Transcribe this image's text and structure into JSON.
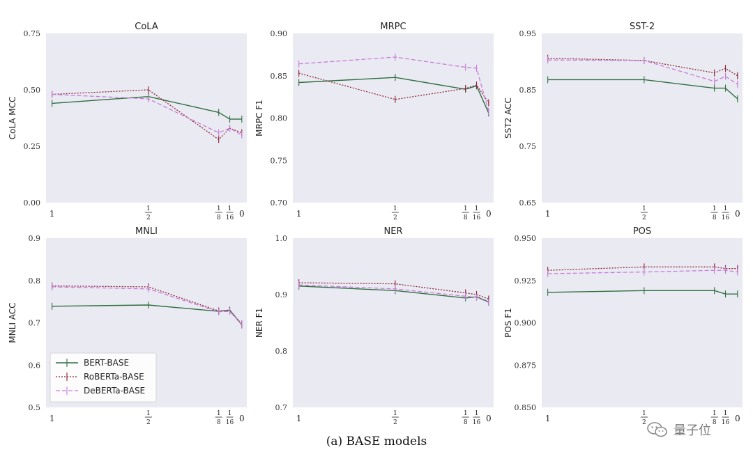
{
  "caption": "(a) BASE models",
  "watermark_text": "量子位",
  "colors": {
    "panel_bg": "#eaeaf2",
    "bert": "#2e6e3e",
    "roberta": "#8b2233",
    "deberta": "#c77bd9"
  },
  "x_tick_labels": [
    "1",
    "1/2",
    "1/8",
    "1/16",
    "0"
  ],
  "legend": {
    "placement": "lower-left",
    "panel": "MNLI",
    "entries": [
      "BERT-BASE",
      "RoBERTa-BASE",
      "DeBERTa-BASE"
    ]
  },
  "chart_data": [
    {
      "type": "line",
      "title": "CoLA",
      "ylabel": "CoLA MCC",
      "ylim": [
        0.0,
        0.75
      ],
      "yticks": [
        "0.00",
        "0.25",
        "0.50",
        "0.75"
      ],
      "x": [
        1,
        0.5,
        0.125,
        0.0625,
        0
      ],
      "series": [
        {
          "name": "BERT-BASE",
          "values": [
            0.44,
            0.47,
            0.4,
            0.37,
            0.37
          ]
        },
        {
          "name": "RoBERTa-BASE",
          "values": [
            0.48,
            0.5,
            0.28,
            0.33,
            0.31
          ]
        },
        {
          "name": "DeBERTa-BASE",
          "values": [
            0.48,
            0.46,
            0.31,
            0.33,
            0.3
          ]
        }
      ]
    },
    {
      "type": "line",
      "title": "MRPC",
      "ylabel": "MRPC F1",
      "ylim": [
        0.7,
        0.9
      ],
      "yticks": [
        "0.70",
        "0.75",
        "0.80",
        "0.85",
        "0.90"
      ],
      "x": [
        1,
        0.5,
        0.125,
        0.0625,
        0
      ],
      "series": [
        {
          "name": "BERT-BASE",
          "values": [
            0.842,
            0.848,
            0.834,
            0.838,
            0.806
          ]
        },
        {
          "name": "RoBERTa-BASE",
          "values": [
            0.853,
            0.822,
            0.835,
            0.839,
            0.818
          ]
        },
        {
          "name": "DeBERTa-BASE",
          "values": [
            0.864,
            0.872,
            0.86,
            0.859,
            0.808
          ]
        }
      ]
    },
    {
      "type": "line",
      "title": "SST-2",
      "ylabel": "SST2 ACC",
      "ylim": [
        0.65,
        0.95
      ],
      "yticks": [
        "0.65",
        "0.75",
        "0.85",
        "0.95"
      ],
      "x": [
        1,
        0.5,
        0.125,
        0.0625,
        0
      ],
      "series": [
        {
          "name": "BERT-BASE",
          "values": [
            0.868,
            0.868,
            0.853,
            0.853,
            0.834
          ]
        },
        {
          "name": "RoBERTa-BASE",
          "values": [
            0.906,
            0.902,
            0.88,
            0.888,
            0.875
          ]
        },
        {
          "name": "DeBERTa-BASE",
          "values": [
            0.903,
            0.902,
            0.865,
            0.874,
            0.86
          ]
        }
      ]
    },
    {
      "type": "line",
      "title": "MNLI",
      "ylabel": "MNLI ACC",
      "ylim": [
        0.5,
        0.9
      ],
      "yticks": [
        "0.5",
        "0.6",
        "0.7",
        "0.8",
        "0.9"
      ],
      "x": [
        1,
        0.5,
        0.125,
        0.0625,
        0
      ],
      "series": [
        {
          "name": "BERT-BASE",
          "values": [
            0.739,
            0.742,
            0.727,
            0.73,
            0.695
          ]
        },
        {
          "name": "RoBERTa-BASE",
          "values": [
            0.787,
            0.785,
            0.728,
            0.728,
            0.697
          ]
        },
        {
          "name": "DeBERTa-BASE",
          "values": [
            0.785,
            0.78,
            0.726,
            0.727,
            0.696
          ]
        }
      ]
    },
    {
      "type": "line",
      "title": "NER",
      "ylabel": "NER F1",
      "ylim": [
        0.7,
        1.0
      ],
      "yticks": [
        "0.7",
        "0.8",
        "0.9",
        "1.0"
      ],
      "x": [
        1,
        0.5,
        0.125,
        0.0625,
        0
      ],
      "series": [
        {
          "name": "BERT-BASE",
          "values": [
            0.915,
            0.907,
            0.894,
            0.896,
            0.887
          ]
        },
        {
          "name": "RoBERTa-BASE",
          "values": [
            0.921,
            0.919,
            0.903,
            0.9,
            0.892
          ]
        },
        {
          "name": "DeBERTa-BASE",
          "values": [
            0.917,
            0.91,
            0.897,
            0.895,
            0.886
          ]
        }
      ]
    },
    {
      "type": "line",
      "title": "POS",
      "ylabel": "POS F1",
      "ylim": [
        0.85,
        0.95
      ],
      "yticks": [
        "0.850",
        "0.875",
        "0.900",
        "0.925",
        "0.950"
      ],
      "x": [
        1,
        0.5,
        0.125,
        0.0625,
        0
      ],
      "series": [
        {
          "name": "BERT-BASE",
          "values": [
            0.918,
            0.919,
            0.919,
            0.917,
            0.917
          ]
        },
        {
          "name": "RoBERTa-BASE",
          "values": [
            0.931,
            0.933,
            0.933,
            0.932,
            0.932
          ]
        },
        {
          "name": "DeBERTa-BASE",
          "values": [
            0.929,
            0.93,
            0.931,
            0.931,
            0.93
          ]
        }
      ]
    }
  ]
}
